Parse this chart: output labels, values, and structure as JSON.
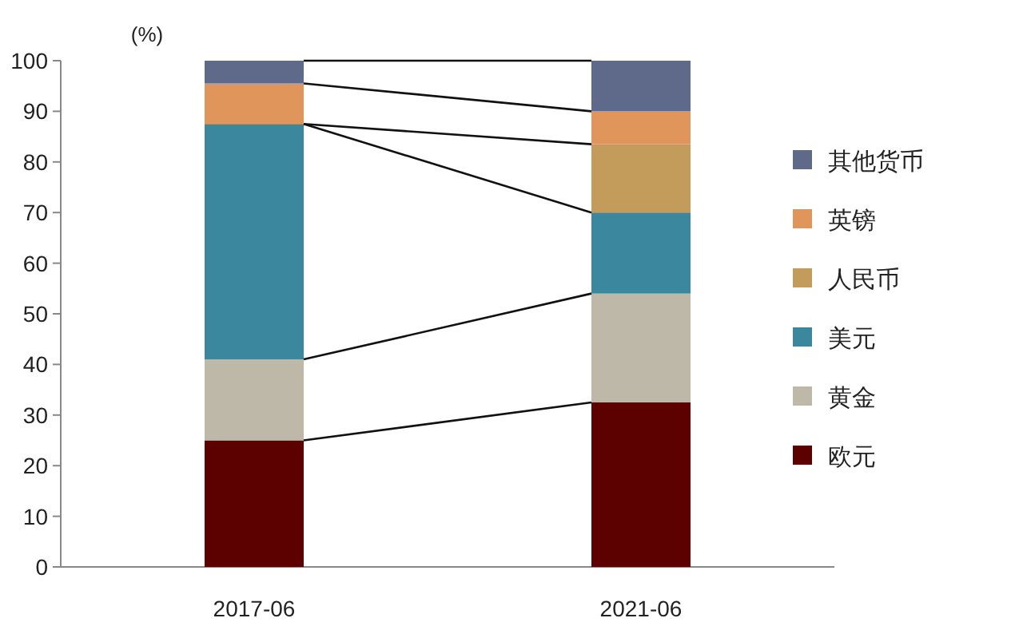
{
  "chart_data": {
    "type": "bar",
    "stacked": true,
    "ylabel": "(%)",
    "categories": [
      "2017-06",
      "2021-06"
    ],
    "series": [
      {
        "name": "欧元",
        "color": "#5c0000",
        "values": [
          25,
          32.5
        ]
      },
      {
        "name": "黄金",
        "color": "#bdb8a8",
        "values": [
          16,
          21.5
        ]
      },
      {
        "name": "美元",
        "color": "#3a879e",
        "values": [
          46.5,
          16
        ]
      },
      {
        "name": "人民币",
        "color": "#c39b5a",
        "values": [
          0,
          13.5
        ]
      },
      {
        "name": "英镑",
        "color": "#e0955a",
        "values": [
          8,
          6.5
        ]
      },
      {
        "name": "其他货币",
        "color": "#5f6a8a",
        "values": [
          4.5,
          10
        ]
      }
    ],
    "ylim": [
      0,
      100
    ],
    "yticks": [
      0,
      10,
      20,
      30,
      40,
      50,
      60,
      70,
      80,
      90,
      100
    ],
    "legend": "right",
    "grid": false
  }
}
